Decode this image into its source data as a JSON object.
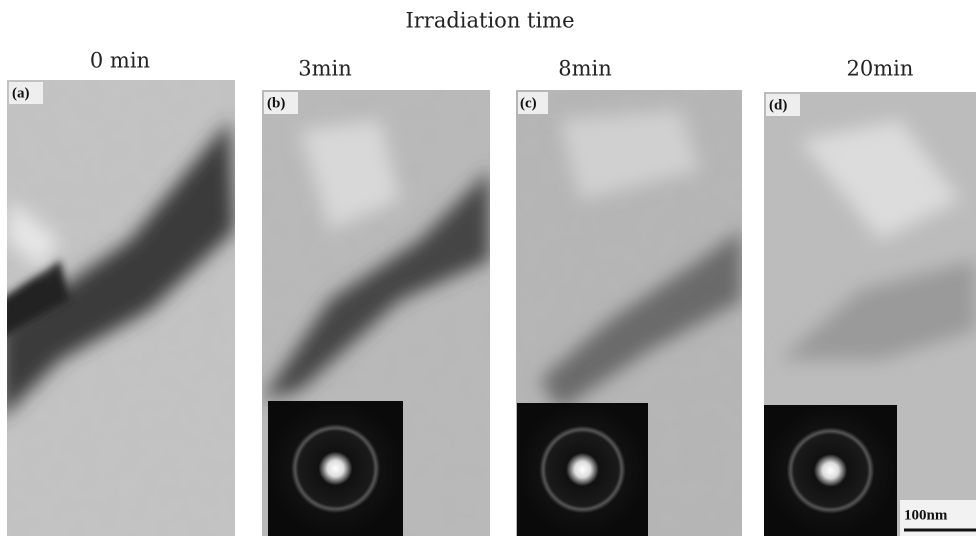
{
  "header": {
    "title": "Irradiation time"
  },
  "panels": [
    {
      "time": "0 min",
      "label": "(a)"
    },
    {
      "time": "3min",
      "label": "(b)"
    },
    {
      "time": "8min",
      "label": "(c)"
    },
    {
      "time": "20min",
      "label": "(d)"
    }
  ],
  "scale_bar": "100nm"
}
